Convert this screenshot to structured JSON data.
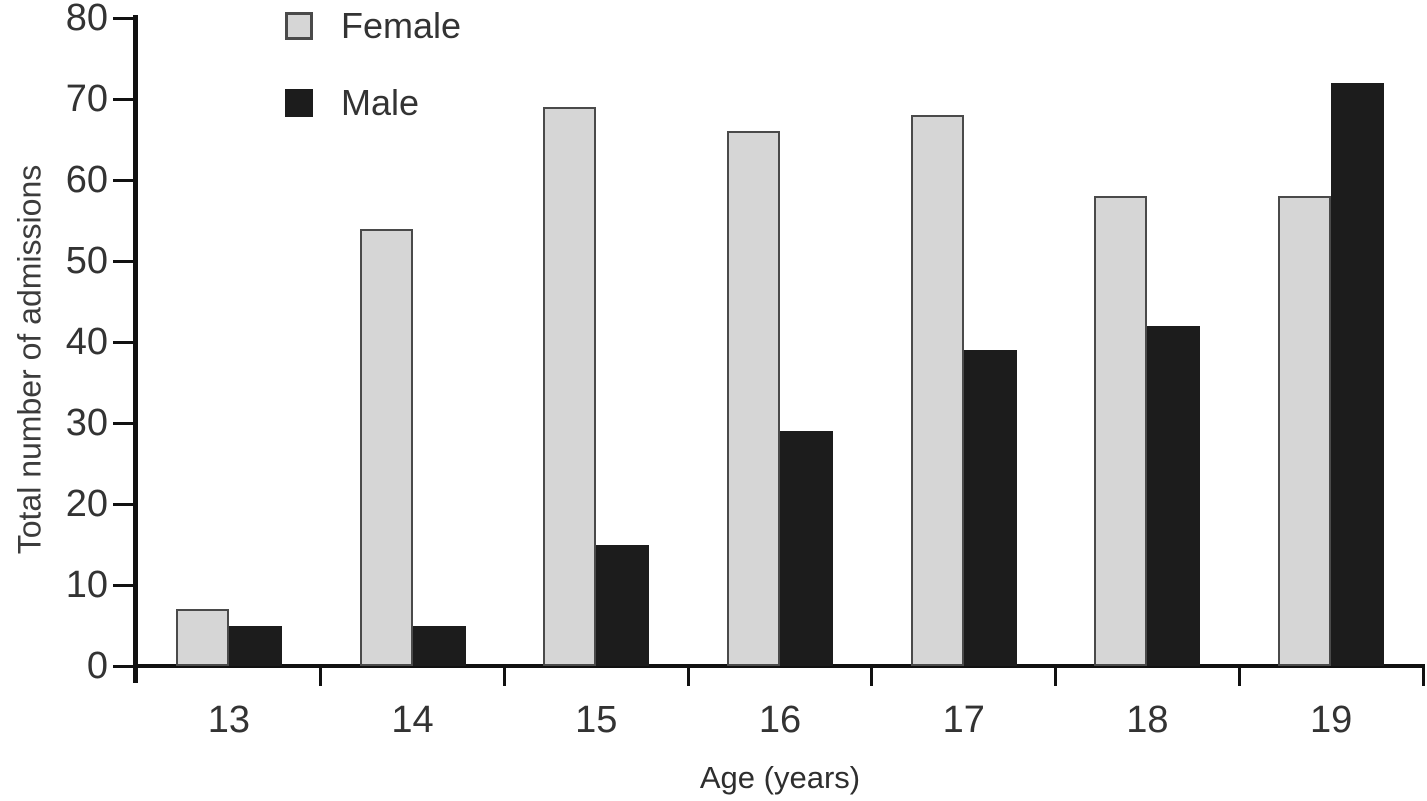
{
  "chart_data": {
    "type": "bar",
    "title": "",
    "categories": [
      "13",
      "14",
      "15",
      "16",
      "17",
      "18",
      "19"
    ],
    "series": [
      {
        "name": "Female",
        "values": [
          7,
          54,
          69,
          66,
          68,
          58,
          58
        ],
        "color": "#d6d6d6",
        "border": "#4a4a4a"
      },
      {
        "name": "Male",
        "values": [
          5,
          5,
          15,
          29,
          39,
          42,
          72
        ],
        "color": "#1c1c1c",
        "border": "#1c1c1c"
      }
    ],
    "xlabel": "Age (years)",
    "ylabel": "Total number of admissions",
    "ylim": [
      0,
      80
    ],
    "yticks": [
      0,
      10,
      20,
      30,
      40,
      50,
      60,
      70,
      80
    ],
    "grid": false,
    "legend_position": "top-left-inside"
  },
  "colors": {
    "background": "#ffffff",
    "axis": "#111111",
    "text": "#333333",
    "female_bar": "#d6d6d6",
    "female_bar_border": "#4a4a4a",
    "male_bar": "#1c1c1c"
  }
}
